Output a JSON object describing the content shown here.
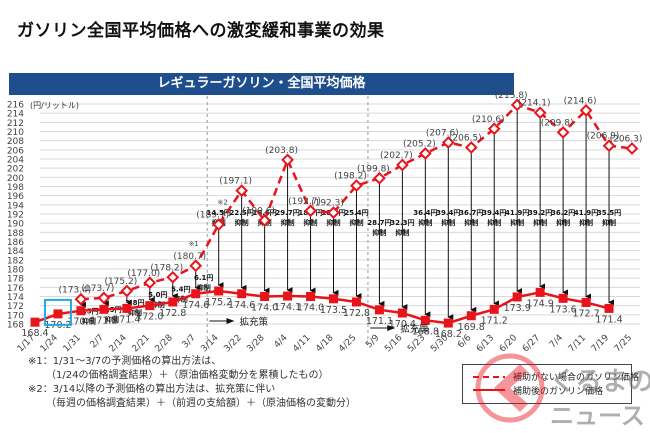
{
  "page": {
    "title": "ガソリン全国平均価格への激変緩和事業の効果"
  },
  "chart_data": {
    "type": "line",
    "title": "レギュラーガソリン・全国平均価格",
    "ylabel": "(円/リットル)",
    "xlabel": "",
    "ylim": [
      168,
      216
    ],
    "y_ticks": [
      168,
      170,
      172,
      174,
      176,
      178,
      180,
      182,
      184,
      186,
      188,
      190,
      192,
      194,
      196,
      198,
      200,
      202,
      204,
      206,
      208,
      210,
      212,
      214,
      216
    ],
    "grid": true,
    "categories": [
      "1/17",
      "1/24",
      "1/31",
      "2/7",
      "2/14",
      "2/21",
      "2/28",
      "3/7",
      "3/14",
      "3/22",
      "3/28",
      "4/4",
      "4/11",
      "4/18",
      "4/25",
      "5/9",
      "5/16",
      "5/23",
      "5/30",
      "6/6",
      "6/13",
      "6/20",
      "6/27",
      "7/4",
      "7/11",
      "7/19",
      "7/25"
    ],
    "series": [
      {
        "name": "補助後のガソリン価格",
        "style": "solid",
        "color": "#e8141c",
        "values": [
          168.4,
          170.2,
          170.9,
          171.2,
          171.4,
          172.0,
          172.8,
          174.6,
          175.2,
          174.6,
          174.0,
          174.1,
          174.0,
          173.5,
          172.8,
          171.1,
          170.4,
          168.8,
          168.2,
          169.8,
          171.2,
          173.9,
          174.9,
          173.6,
          172.7,
          171.4,
          null
        ],
        "labels": [
          "168.4",
          "170.2",
          "170.9",
          "171.2",
          "171.4",
          "172.0",
          "172.8",
          "174.6",
          "175.2",
          "174.6",
          "174.0",
          "174.1",
          "174.0",
          "173.5",
          "172.8",
          "171.1",
          "170.4",
          "168.8",
          "168.2",
          "169.8",
          "171.2",
          "173.9",
          "174.9",
          "173.6",
          "172.7",
          "171.4",
          null
        ]
      },
      {
        "name": "補助がない場合のガソリン価格",
        "style": "dashed",
        "color": "#e8141c",
        "values": [
          null,
          null,
          173.4,
          173.7,
          175.2,
          177.0,
          178.2,
          180.7,
          189.7,
          197.1,
          190.6,
          203.8,
          192.7,
          192.3,
          198.2,
          199.8,
          202.7,
          205.2,
          207.6,
          206.5,
          210.6,
          215.8,
          214.1,
          209.8,
          214.6,
          206.9,
          206.3
        ],
        "labels": [
          null,
          null,
          "(173.4)",
          "(173.7)",
          "(175.2)",
          "(177.0)",
          "(178.2)",
          "(180.7)",
          "(189.7)",
          "(197.1)",
          "(190.6)",
          "(203.8)",
          "(192.7)",
          "(192.3)",
          "(198.2)",
          "(199.8)",
          "(202.7)",
          "(205.2)",
          "(207.6)",
          "(206.5)",
          "(210.6)",
          "(215.8)",
          "(214.1)",
          "(209.8)",
          "(214.6)",
          "(206.9)",
          "(206.3)"
        ]
      }
    ],
    "suppression": [
      null,
      null,
      "2.5円",
      "2.5円",
      "3.8円",
      "5.0円",
      "5.4円",
      "6.1円",
      "14.5円",
      "22.5円",
      "16.6円",
      "29.7円",
      "18.7円",
      "18.8円",
      "25.4円",
      "28.7円",
      "32.3円",
      "36.4円",
      "39.4円",
      "36.7円",
      "39.4円",
      "41.9円",
      "39.2円",
      "36.2円",
      "41.9円",
      "35.5円",
      null
    ],
    "suppression_suffix": "抑制",
    "annotations": {
      "note1_marker": "※1",
      "note2_marker": "※2",
      "expansion_label": "拡充策",
      "highlight_category": "1/24"
    },
    "legend": {
      "position": "bottom-right",
      "entries": [
        "補助がない場合のガソリン価格",
        "補助後のガソリン価格"
      ]
    }
  },
  "notes": {
    "line1": "※1：1/31～3/7の予測価格の算出方法は、",
    "line2": "（1/24の価格調査結果）＋（原油価格変動分を累積したもの）",
    "line3": "※2：3/14以降の予測価格の算出方法は、拡充策に伴い",
    "line4": "（毎週の価格調査結果）＋（前週の支給額）＋（原油価格の変動分）"
  },
  "watermark": {
    "line1": "くるまの",
    "line2": "ニュース"
  }
}
